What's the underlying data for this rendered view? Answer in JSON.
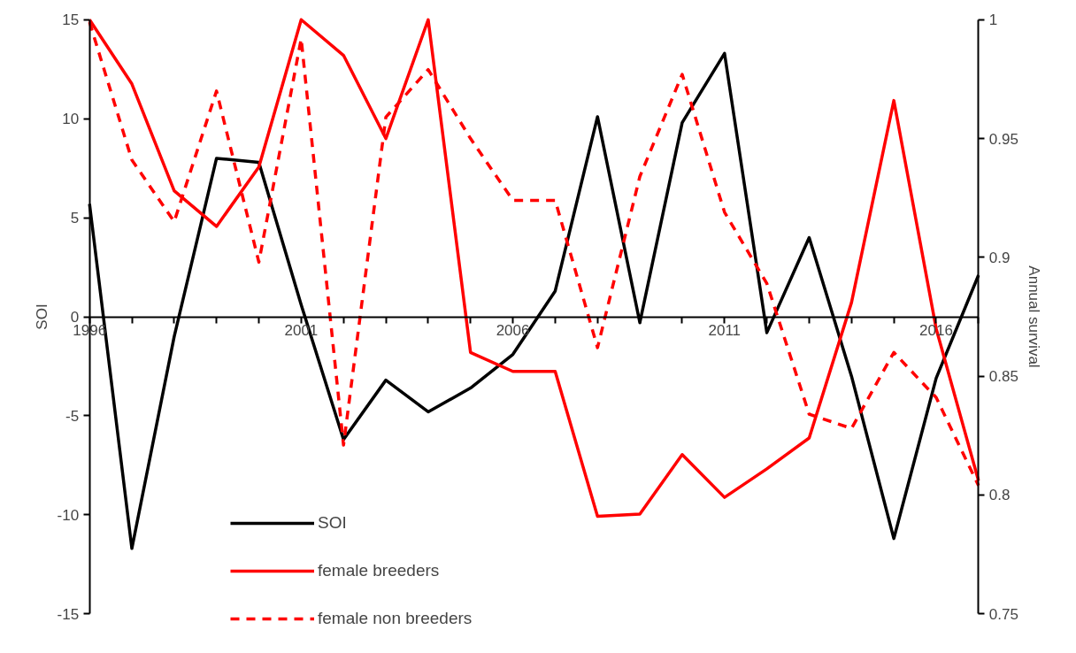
{
  "chart_data": {
    "type": "line",
    "xlabel": null,
    "ylabel": "SOI",
    "y2label": "Annual survival",
    "x": [
      1996,
      1997,
      1998,
      1999,
      2000,
      2001,
      2002,
      2003,
      2004,
      2005,
      2006,
      2007,
      2008,
      2009,
      2010,
      2011,
      2012,
      2013,
      2014,
      2015,
      2016,
      2017
    ],
    "series": [
      {
        "name": "SOI",
        "color": "#000000",
        "line_style": "solid",
        "values": [
          5.7,
          -11.7,
          -1.0,
          8.0,
          7.8,
          0.6,
          -6.2,
          -3.2,
          -4.8,
          -3.6,
          -1.9,
          1.3,
          10.1,
          -0.3,
          9.8,
          13.3,
          -0.8,
          4.0,
          -3.0,
          -11.2,
          -3.1,
          2.1
        ]
      },
      {
        "name": "female breeders",
        "color": "#ff0000",
        "line_style": "solid",
        "axis": "y2",
        "values": [
          1.0,
          0.973,
          0.928,
          0.913,
          0.938,
          1.0,
          0.985,
          0.95,
          1.0,
          0.86,
          0.852,
          0.852,
          0.791,
          0.792,
          0.817,
          0.799,
          0.811,
          0.824,
          0.881,
          0.966,
          0.87,
          0.806
        ]
      },
      {
        "name": "female non breeders",
        "color": "#ff0000",
        "line_style": "dashed",
        "axis": "y2",
        "values": [
          0.999,
          0.941,
          0.915,
          0.97,
          0.898,
          0.992,
          0.821,
          0.959,
          0.979,
          0.95,
          0.924,
          0.924,
          0.862,
          0.934,
          0.977,
          0.919,
          0.889,
          0.834,
          0.828,
          0.86,
          0.841,
          0.804
        ]
      }
    ],
    "xlim": [
      1996,
      2017
    ],
    "xticks": [
      1996,
      {
        "value": 1997,
        "label": null
      },
      {
        "value": 1998,
        "label": null
      },
      {
        "value": 1999,
        "label": null
      },
      {
        "value": 2000,
        "label": null
      },
      2001,
      {
        "value": 2002,
        "label": null
      },
      {
        "value": 2003,
        "label": null
      },
      {
        "value": 2004,
        "label": null
      },
      {
        "value": 2005,
        "label": null
      },
      2006,
      {
        "value": 2007,
        "label": null
      },
      {
        "value": 2008,
        "label": null
      },
      {
        "value": 2009,
        "label": null
      },
      {
        "value": 2010,
        "label": null
      },
      2011,
      {
        "value": 2012,
        "label": null
      },
      {
        "value": 2013,
        "label": null
      },
      {
        "value": 2014,
        "label": null
      },
      {
        "value": 2015,
        "label": null
      },
      2016,
      {
        "value": 2017,
        "label": null
      }
    ],
    "ylim": [
      -15,
      15
    ],
    "yticks": [
      -15,
      -10,
      -5,
      0,
      5,
      10,
      15
    ],
    "y2lim": [
      0.75,
      1
    ],
    "y2ticks": [
      0.75,
      0.8,
      0.85,
      0.9,
      0.95,
      1
    ],
    "grid": false,
    "legend": "bottom",
    "marker": "none"
  }
}
